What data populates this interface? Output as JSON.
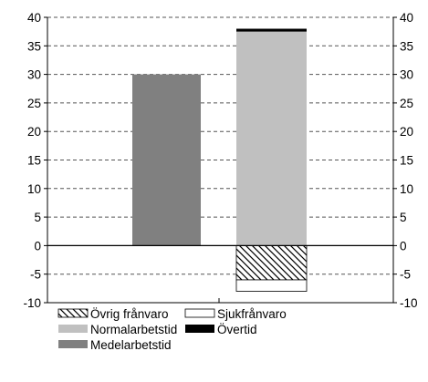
{
  "chart_data": {
    "type": "bar",
    "stacked": true,
    "categories": [
      "",
      ""
    ],
    "ylim": [
      -10,
      40
    ],
    "ytick_step": 5,
    "secondary_axis_right": true,
    "grid": "horizontal-dashed",
    "series": [
      {
        "name": "Medelarbetstid",
        "values": [
          30,
          0
        ],
        "color": "#808080",
        "pattern": "solid"
      },
      {
        "name": "Normalarbetstid",
        "values": [
          0,
          37.5
        ],
        "color": "#c0c0c0",
        "pattern": "solid"
      },
      {
        "name": "Övertid",
        "values": [
          0,
          0.5
        ],
        "color": "#000000",
        "pattern": "solid"
      },
      {
        "name": "Övrig frånvaro",
        "values": [
          0,
          -6
        ],
        "color": "#ffffff",
        "pattern": "diagonal-hatch"
      },
      {
        "name": "Sjukfrånvaro",
        "values": [
          0,
          -2
        ],
        "color": "#ffffff",
        "pattern": "solid"
      }
    ],
    "legend": {
      "position": "bottom-left",
      "rows": [
        [
          "Övrig frånvaro",
          "Sjukfrånvaro"
        ],
        [
          "Normalarbetstid",
          "Övertid"
        ],
        [
          "Medelarbetstid"
        ]
      ]
    }
  }
}
